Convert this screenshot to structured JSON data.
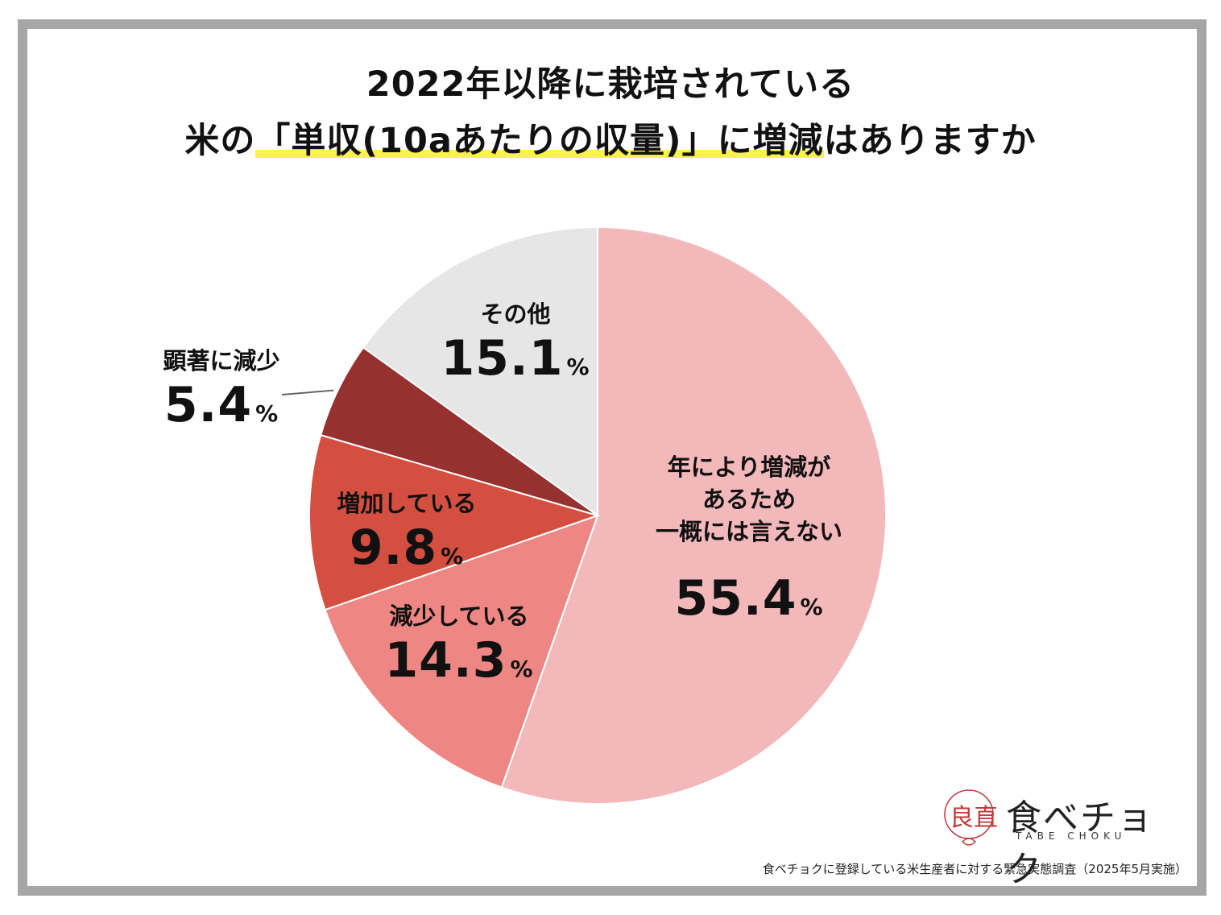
{
  "title": {
    "line1": "2022年以降に栽培されている",
    "line2_prefix": "米の",
    "line2_highlight": "「単収(10aあたりの収量)」に増減",
    "line2_suffix": "はありますか"
  },
  "chart_data": {
    "type": "pie",
    "start": "12 o'clock",
    "direction": "clockwise",
    "slices": [
      {
        "label": "年により増減があるため一概には言えない",
        "label_lines": [
          "年により増減が",
          "あるため",
          "一概には言えない"
        ],
        "value": 55.4,
        "value_text": "55.4",
        "color": "#f3b8ba"
      },
      {
        "label": "減少している",
        "label_lines": [
          "減少している"
        ],
        "value": 14.3,
        "value_text": "14.3",
        "color": "#ee8784"
      },
      {
        "label": "増加している",
        "label_lines": [
          "増加している"
        ],
        "value": 9.8,
        "value_text": "9.8",
        "color": "#d44f40"
      },
      {
        "label": "顕著に減少",
        "label_lines": [
          "顕著に減少"
        ],
        "value": 5.4,
        "value_text": "5.4",
        "color": "#963130"
      },
      {
        "label": "その他",
        "label_lines": [
          "その他"
        ],
        "value": 15.1,
        "value_text": "15.1",
        "color": "#e6e6e6"
      }
    ],
    "unit": "%"
  },
  "logo": {
    "text": "食べチョク",
    "sub": "TABE CHOKU",
    "mark": "良直"
  },
  "source": "食べチョクに登録している米生産者に対する緊急実態調査（2025年5月実施）"
}
